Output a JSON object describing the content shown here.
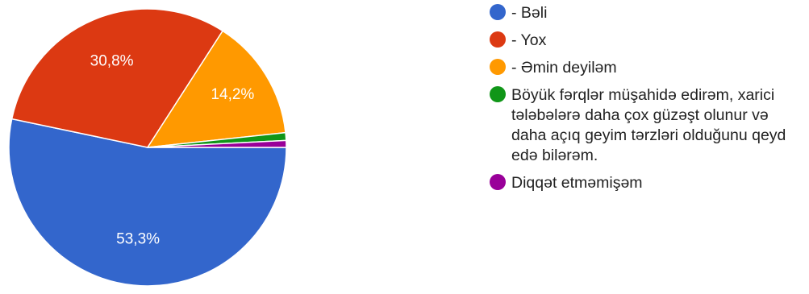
{
  "chart_data": {
    "type": "pie",
    "categories": [
      "- Bəli",
      "- Yox",
      "- Əmin deyiləm",
      "Böyük fərqlər müşahidə edirəm, xarici tələbələrə daha çox güzəşt olunur və daha açıq geyim tərzləri olduğunu qeyd edə bilərəm.",
      "Diqqət etməmişəm"
    ],
    "values": [
      53.3,
      30.8,
      14.2,
      0.9,
      0.8
    ],
    "labels": [
      "53,3%",
      "30,8%",
      "14,2%",
      "",
      ""
    ],
    "colors": [
      "#3366cc",
      "#dc3912",
      "#ff9900",
      "#109618",
      "#990099"
    ],
    "legend_position": "right"
  }
}
